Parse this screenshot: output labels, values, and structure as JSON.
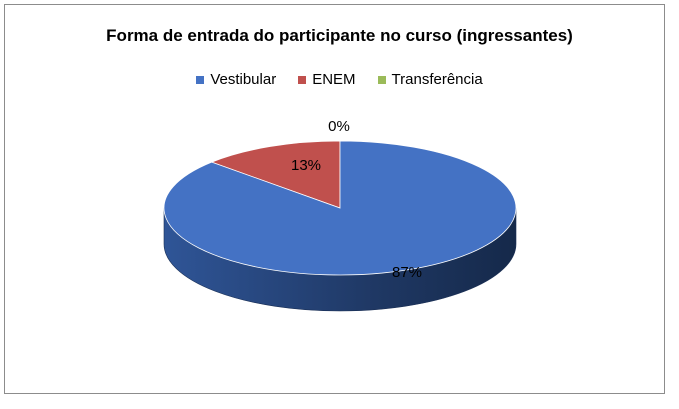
{
  "chart_data": {
    "type": "pie",
    "title": "Forma de entrada do participante no curso (ingressantes)",
    "categories": [
      "Vestibular",
      "ENEM",
      "Transferência"
    ],
    "values": [
      87,
      13,
      0
    ],
    "labels": [
      "87%",
      "13%",
      "0%"
    ],
    "colors": [
      "#4472c4",
      "#c0504d",
      "#9bbb59"
    ],
    "legend_position": "top",
    "style": "3d"
  }
}
